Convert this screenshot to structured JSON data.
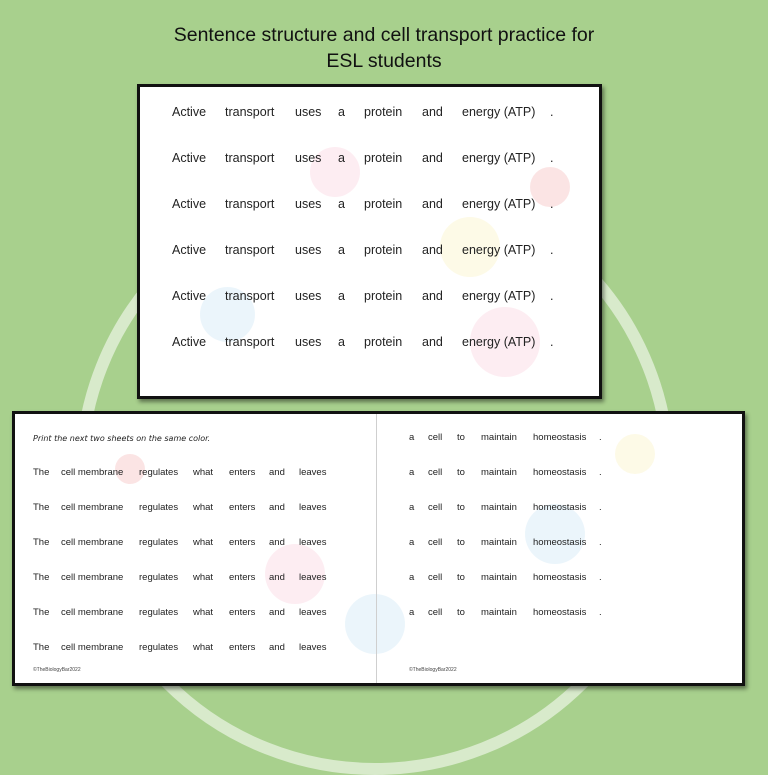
{
  "title": {
    "line1": "Sentence structure and cell transport practice for",
    "line2": "ESL students"
  },
  "top_card": {
    "words": [
      "Active",
      "transport",
      "uses",
      "a",
      "protein",
      "and",
      "energy (ATP)",
      "."
    ],
    "row_count": 6
  },
  "bottom_left": {
    "instruction": "Print the next two sheets on the same color.",
    "words": [
      "The",
      "cell membrane",
      "regulates",
      "what",
      "enters",
      "and",
      "leaves"
    ],
    "row_count": 6,
    "copyright": "©TheBiologyBar2022"
  },
  "bottom_right": {
    "words": [
      "a",
      "cell",
      "to",
      "maintain",
      "homeostasis",
      "."
    ],
    "row_count": 6,
    "copyright": "©TheBiologyBar2022"
  },
  "colors": {
    "background": "#a8d08d",
    "card": "#ffffff",
    "border": "#111111"
  }
}
